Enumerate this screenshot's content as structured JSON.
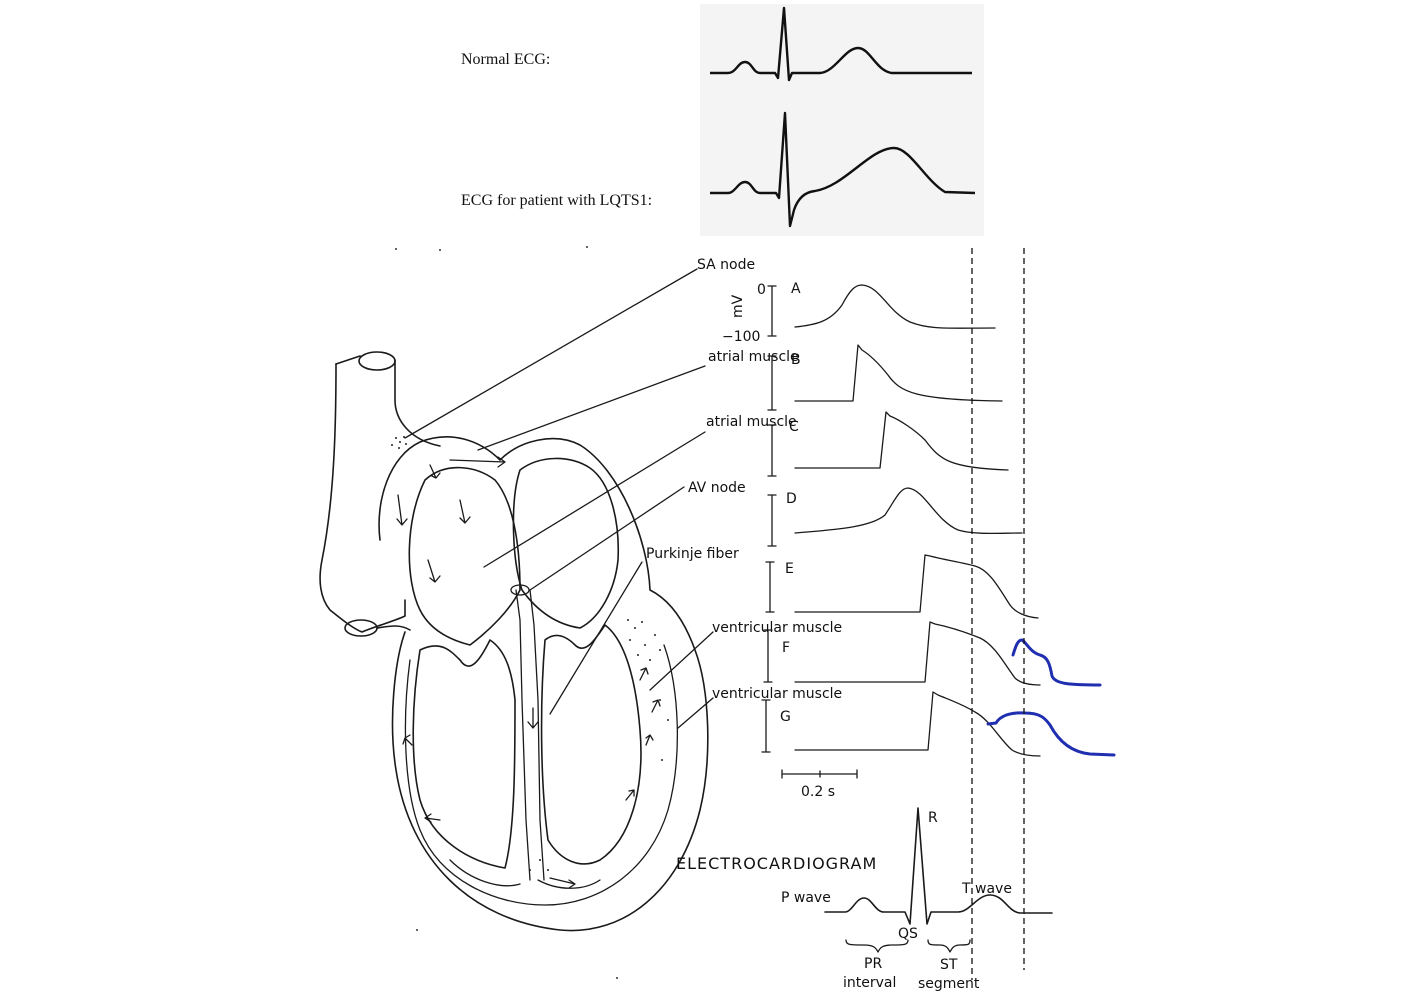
{
  "ecg_top": {
    "normal_label": "Normal ECG:",
    "lqts_label": "ECG for patient with LQTS1:"
  },
  "conduction": {
    "callouts": {
      "sa_node": "SA node",
      "atrial_muscle_1": "atrial muscle",
      "atrial_muscle_2": "atrial muscle",
      "av_node": "AV node",
      "purkinje": "Purkinje fiber",
      "ventricular_1": "ventricular muscle",
      "ventricular_2": "ventricular muscle"
    },
    "trace_letters": [
      "A",
      "B",
      "C",
      "D",
      "E",
      "F",
      "G"
    ],
    "axis": {
      "unit": "mV",
      "top_value": "0",
      "bottom_value": "−100"
    },
    "scale_bar": "0.2 s"
  },
  "electrocardiogram": {
    "title": "ELECTROCARDIOGRAM",
    "r": "R",
    "qs": "QS",
    "p_wave": "P wave",
    "t_wave": "T wave",
    "pr_interval_1": "PR",
    "pr_interval_2": "interval",
    "st_segment_1": "ST",
    "st_segment_2": "segment"
  },
  "colors": {
    "ink": "#1a1a1a",
    "annotation_blue": "#1f2fb0"
  }
}
